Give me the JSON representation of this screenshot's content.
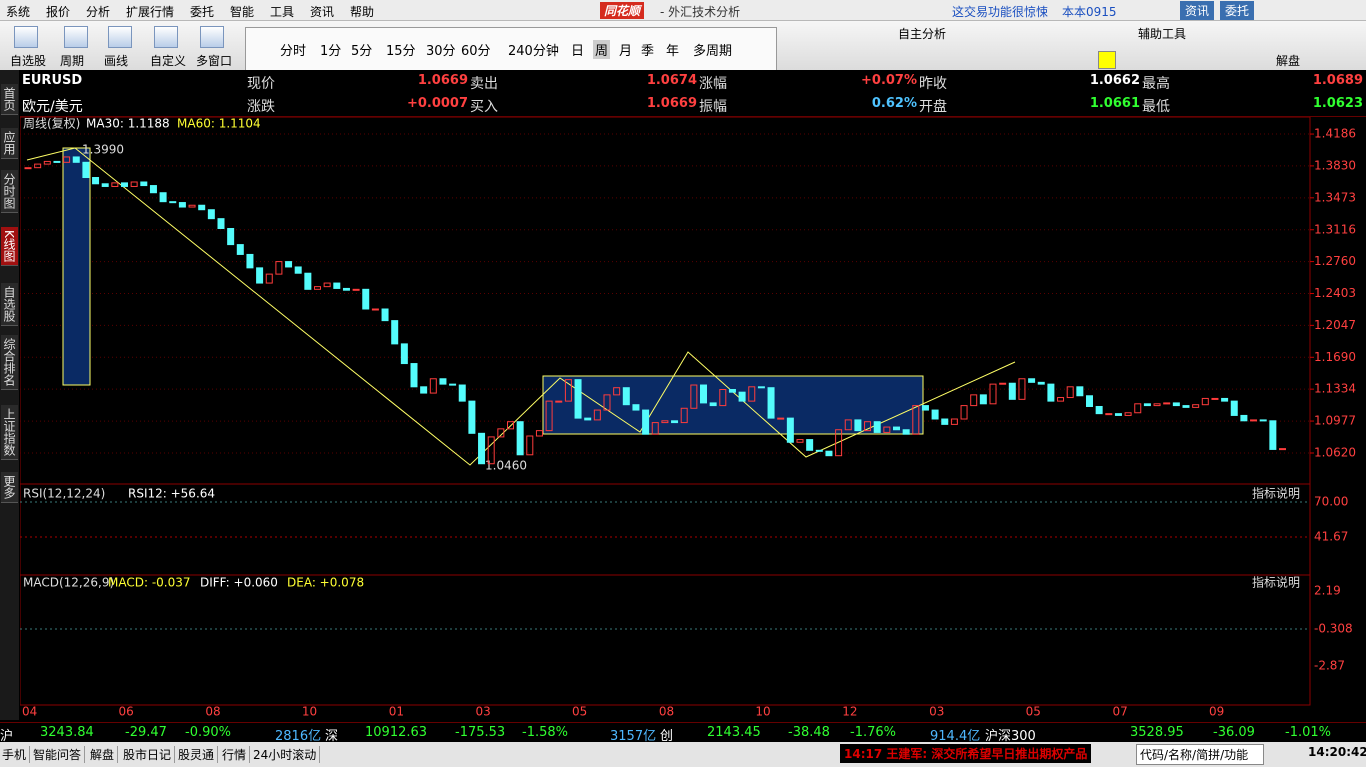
{
  "menu": [
    "系统",
    "报价",
    "分析",
    "扩展行情",
    "委托",
    "智能",
    "工具",
    "资讯",
    "帮助"
  ],
  "brand": "同花顺",
  "window_title": "- 外汇技术分析",
  "notice": "这交易功能很惊悚",
  "account": "本本0915",
  "top_buttons": [
    "资讯",
    "委托"
  ],
  "toolbar": {
    "tools": [
      "自选股",
      "周期",
      "画线",
      "自定义",
      "多窗口"
    ],
    "periods": [
      "分时",
      "1分",
      "5分",
      "15分",
      "30分",
      "60分",
      "240分钟",
      "日",
      "周",
      "月",
      "季",
      "年",
      "多周期"
    ],
    "self_analysis": "自主分析",
    "aux_tools": "辅助工具",
    "jiepan": "解盘"
  },
  "sidebar": [
    "首页",
    "应用",
    "分时图",
    "K线图",
    "自选股",
    "综合排名",
    "上证指数",
    "更多"
  ],
  "quote": {
    "symbol": "EURUSD",
    "name": "欧元/美元",
    "row1": [
      {
        "label": "现价",
        "value": "1.0669"
      },
      {
        "label": "卖出",
        "value": "1.0674"
      },
      {
        "label": "涨幅",
        "value": "+0.07%"
      },
      {
        "label": "昨收",
        "value": "1.0662"
      },
      {
        "label": "最高",
        "value": "1.0689"
      }
    ],
    "row2": [
      {
        "label": "涨跌",
        "value": "+0.0007"
      },
      {
        "label": "买入",
        "value": "1.0669"
      },
      {
        "label": "振幅",
        "value": "0.62%"
      },
      {
        "label": "开盘",
        "value": "1.0661"
      },
      {
        "label": "最低",
        "value": "1.0623"
      }
    ]
  },
  "chart_data": {
    "type": "candlestick",
    "title": "周线(复权)",
    "ma_labels": [
      "MA30: 1.1188",
      "MA60: 1.1104"
    ],
    "annotations": [
      "1.3990",
      "1.0460"
    ],
    "up_color": "#ff3c3c",
    "down_color": "#54fcfc",
    "grid": true,
    "ylim": [
      1.0336,
      1.4276
    ],
    "yticks": [
      1.4186,
      {
        "value": 1.383,
        "label": "1.3830"
      },
      1.3473,
      1.3116,
      {
        "value": 1.276,
        "label": "1.2760"
      },
      1.2403,
      1.2047,
      {
        "value": 1.169,
        "label": "1.1690"
      },
      1.1334,
      1.0977,
      {
        "value": 1.062,
        "label": "1.0620"
      }
    ],
    "categories": [
      "04",
      null,
      null,
      null,
      null,
      null,
      null,
      null,
      null,
      null,
      "06",
      null,
      null,
      null,
      null,
      null,
      null,
      null,
      null,
      "08",
      null,
      null,
      null,
      null,
      null,
      null,
      null,
      null,
      null,
      "10",
      null,
      null,
      null,
      null,
      null,
      null,
      null,
      null,
      "01",
      null,
      null,
      null,
      null,
      null,
      null,
      null,
      null,
      "03",
      null,
      null,
      null,
      null,
      null,
      null,
      null,
      null,
      null,
      "05",
      null,
      null,
      null,
      null,
      null,
      null,
      null,
      null,
      "08",
      null,
      null,
      null,
      null,
      null,
      null,
      null,
      null,
      null,
      "10",
      null,
      null,
      null,
      null,
      null,
      null,
      null,
      null,
      "12",
      null,
      null,
      null,
      null,
      null,
      null,
      null,
      null,
      "03",
      null,
      null,
      null,
      null,
      null,
      null,
      null,
      null,
      null,
      "05",
      null,
      null,
      null,
      null,
      null,
      null,
      null,
      null,
      "07",
      null,
      null,
      null,
      null,
      null,
      null,
      null,
      null,
      null,
      "09",
      null,
      null,
      null,
      null,
      null,
      null,
      null
    ],
    "values": [
      1.381,
      1.385,
      1.388,
      1.387,
      1.393,
      1.387,
      1.37,
      1.363,
      1.36,
      1.364,
      1.36,
      1.365,
      1.361,
      1.353,
      1.343,
      1.342,
      1.337,
      1.339,
      1.334,
      1.324,
      1.313,
      1.295,
      1.284,
      1.269,
      1.252,
      1.262,
      1.276,
      1.27,
      1.263,
      1.245,
      1.248,
      1.252,
      1.246,
      1.244,
      1.245,
      1.223,
      1.223,
      1.21,
      1.184,
      1.162,
      1.136,
      1.129,
      1.145,
      1.139,
      1.138,
      1.12,
      1.084,
      1.05,
      1.08,
      1.089,
      1.097,
      1.06,
      1.081,
      1.087,
      1.12,
      1.12,
      1.144,
      1.101,
      1.099,
      1.11,
      1.127,
      1.135,
      1.116,
      1.11,
      1.083,
      1.096,
      1.098,
      1.096,
      1.112,
      1.138,
      1.118,
      1.115,
      1.133,
      1.13,
      1.12,
      1.136,
      1.135,
      1.101,
      1.101,
      1.074,
      1.077,
      1.065,
      1.064,
      1.059,
      1.088,
      1.099,
      1.087,
      1.097,
      1.085,
      1.091,
      1.088,
      1.083,
      1.115,
      1.11,
      1.1,
      1.094,
      1.1,
      1.115,
      1.127,
      1.117,
      1.139,
      1.14,
      1.122,
      1.145,
      1.141,
      1.139,
      1.12,
      1.124,
      1.136,
      1.126,
      1.114,
      1.106,
      1.106,
      1.104,
      1.107,
      1.117,
      1.115,
      1.117,
      1.118,
      1.115,
      1.113,
      1.116,
      1.123,
      1.123,
      1.12,
      1.104,
      1.098,
      1.099,
      1.098,
      1.066,
      1.0669
    ]
  },
  "rsi_panel": {
    "title": "RSI(12,12,24)",
    "value": "RSI12: +56.64",
    "help": "指标说明",
    "yticks": [
      "70.00",
      "41.67"
    ]
  },
  "macd_panel": {
    "title": "MACD(12,26,9)",
    "items": [
      "MACD: -0.037",
      "DIFF: +0.060",
      "DEA: +0.078"
    ],
    "help": "指标说明",
    "yticks": [
      "2.19",
      "-0.308",
      "-2.87"
    ]
  },
  "ticker": [
    "沪",
    "3243.84",
    "-29.47",
    "-0.90%",
    "2816亿",
    "深",
    "10912.63",
    "-175.53",
    "-1.58%",
    "3157亿",
    "创",
    "2143.45",
    "-38.48",
    "-1.76%",
    "914.4亿",
    "沪深300",
    "3528.95",
    "-36.09",
    "-1.01%"
  ],
  "status": {
    "tabs": [
      "手机",
      "智能问答",
      "解盘",
      "股市日记",
      "股灵通",
      "行情",
      "24小时滚动"
    ],
    "news": "14:17 王建军: 深交所希望早日推出期权产品",
    "search": "代码/名称/简拼/功能",
    "time": "14:20:42"
  }
}
